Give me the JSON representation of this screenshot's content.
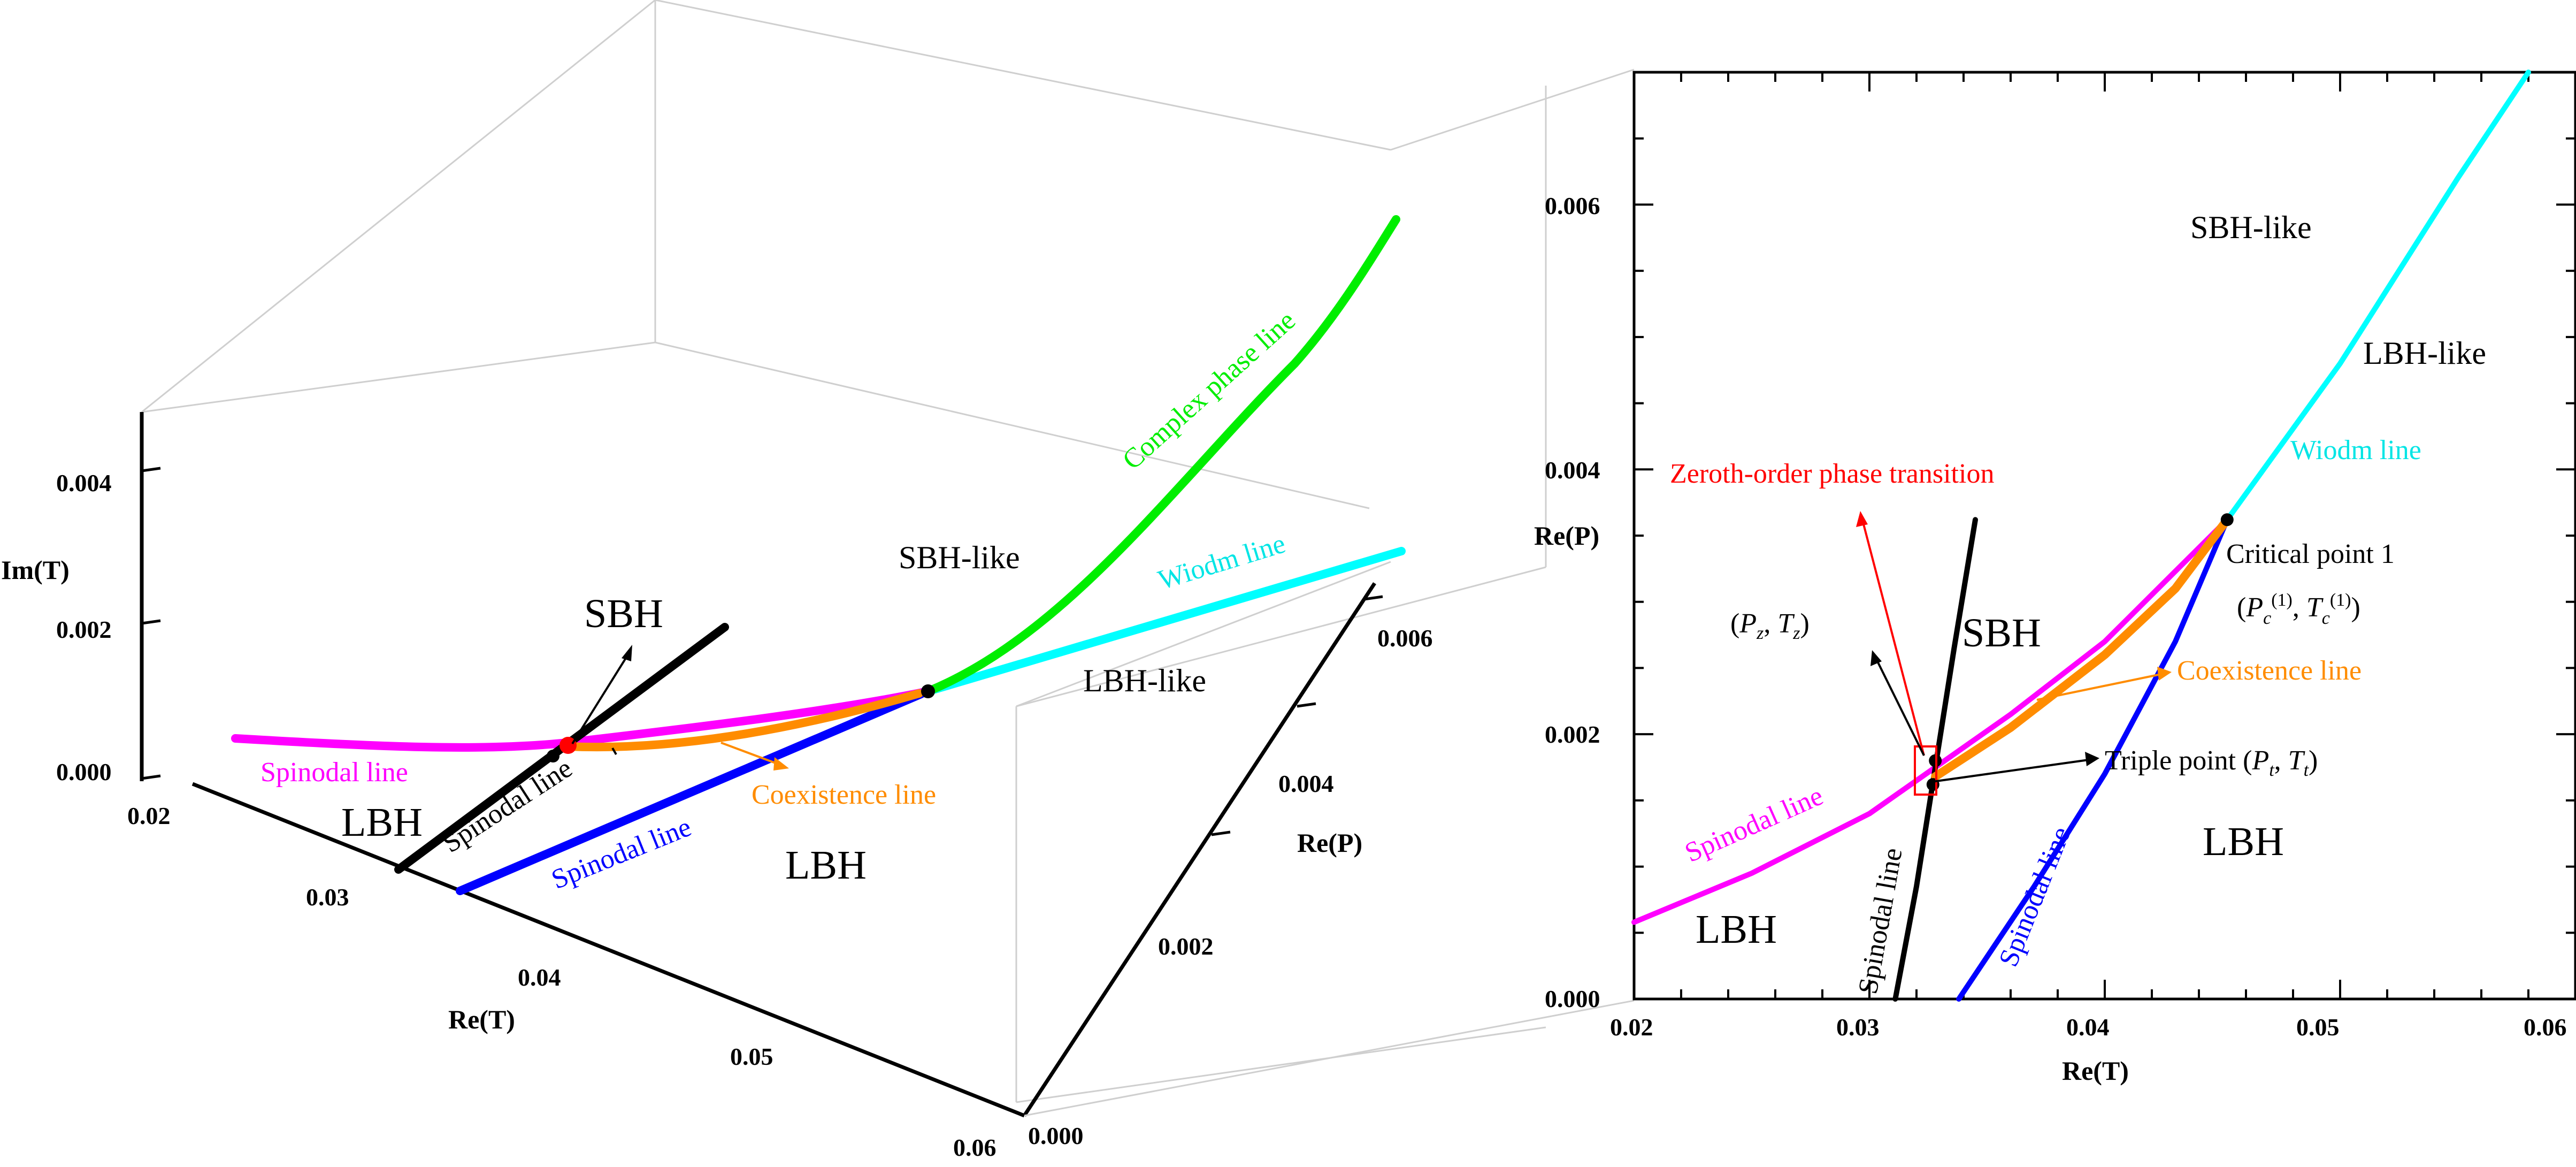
{
  "chart_data": [
    {
      "type": "line",
      "panel": "3d",
      "axes": {
        "x": {
          "label": "Re(T)",
          "ticks": [
            "0.02",
            "0.03",
            "0.04",
            "0.05",
            "0.06"
          ],
          "range": [
            0.02,
            0.06
          ]
        },
        "y": {
          "label": "Re(P)",
          "ticks": [
            "0.000",
            "0.002",
            "0.004",
            "0.006"
          ],
          "range": [
            0.0,
            0.007
          ]
        },
        "z": {
          "label": "Im(T)",
          "ticks": [
            "0.000",
            "0.002",
            "0.004"
          ],
          "range": [
            0.0,
            0.005
          ]
        }
      },
      "series": [
        {
          "name": "Spinodal line",
          "color": "#ff00ff",
          "x": [
            0.02,
            0.025,
            0.03,
            0.0328,
            0.036,
            0.04,
            0.0452
          ],
          "y": [
            0.00058,
            0.00095,
            0.0014,
            0.00175,
            0.00215,
            0.0027,
            0.00362
          ],
          "z": [
            0,
            0,
            0,
            0,
            0,
            0,
            0
          ]
        },
        {
          "name": "Spinodal line",
          "color": "#000000",
          "x": [
            0.0311,
            0.032,
            0.0328,
            0.0336,
            0.0345
          ],
          "y": [
            0.0,
            0.00085,
            0.00175,
            0.00265,
            0.00362
          ],
          "z": [
            0,
            0,
            0,
            0,
            0
          ]
        },
        {
          "name": "Spinodal line",
          "color": "#0000ff",
          "x": [
            0.0338,
            0.037,
            0.04,
            0.043,
            0.0452
          ],
          "y": [
            0.0,
            0.00085,
            0.0017,
            0.0027,
            0.00362
          ],
          "z": [
            0,
            0,
            0,
            0,
            0
          ]
        },
        {
          "name": "Coexistence line",
          "color": "#ff8c00",
          "x": [
            0.0328,
            0.036,
            0.04,
            0.043,
            0.0452
          ],
          "y": [
            0.00168,
            0.00205,
            0.0026,
            0.0031,
            0.00362
          ],
          "z": [
            0,
            0,
            0,
            0,
            0
          ]
        },
        {
          "name": "Wiodm line",
          "color": "#00ffff",
          "x": [
            0.0452,
            0.05,
            0.055,
            0.058
          ],
          "y": [
            0.00362,
            0.0048,
            0.0062,
            0.007
          ],
          "z": [
            0,
            0,
            0,
            0
          ]
        },
        {
          "name": "Complex phase line",
          "color": "#00ee00",
          "x": [
            0.0452,
            0.05,
            0.055,
            0.06
          ],
          "y": [
            0.00362,
            0.0045,
            0.0056,
            0.0068
          ],
          "z": [
            0.0,
            0.001,
            0.0025,
            0.0042
          ]
        }
      ],
      "points": [
        {
          "x": 0.0452,
          "y": 0.00362,
          "z": 0.0,
          "color": "#000000"
        },
        {
          "x": 0.0328,
          "y": 0.00168,
          "z": 0.0,
          "color": "#ff0000"
        },
        {
          "x": 0.0326,
          "y": 0.0016,
          "z": 0.0,
          "color": "#000000"
        }
      ],
      "labels": {
        "sbh": "SBH",
        "lbh_left": "LBH",
        "lbh_right": "LBH",
        "sbh_like": "SBH-like",
        "lbh_like": "LBH-like",
        "complex_phase_line": "Complex phase line",
        "wiodm_line": "Wiodm line",
        "spinodal_pink": "Spinodal line",
        "spinodal_black": "Spinodal line",
        "spinodal_blue": "Spinodal line",
        "coexistence": "Coexistence line"
      }
    },
    {
      "type": "line",
      "panel": "2d",
      "axes": {
        "x": {
          "label": "Re(T)",
          "ticks": [
            "0.02",
            "0.03",
            "0.04",
            "0.05",
            "0.06"
          ],
          "range": [
            0.02,
            0.06
          ]
        },
        "y": {
          "label": "Re(P)",
          "ticks": [
            "0.000",
            "0.002",
            "0.004",
            "0.006"
          ],
          "range": [
            0.0,
            0.007
          ]
        }
      },
      "series": [
        {
          "name": "Spinodal line",
          "color": "#ff00ff",
          "x": [
            0.02,
            0.025,
            0.03,
            0.0328,
            0.036,
            0.04,
            0.0452
          ],
          "y": [
            0.00058,
            0.00095,
            0.0014,
            0.00175,
            0.00215,
            0.0027,
            0.00362
          ]
        },
        {
          "name": "Spinodal line",
          "color": "#000000",
          "x": [
            0.0311,
            0.032,
            0.0328,
            0.0336,
            0.0345
          ],
          "y": [
            0.0,
            0.00085,
            0.00175,
            0.00265,
            0.00362
          ]
        },
        {
          "name": "Spinodal line",
          "color": "#0000ff",
          "x": [
            0.0338,
            0.037,
            0.04,
            0.043,
            0.0452
          ],
          "y": [
            0.0,
            0.00085,
            0.0017,
            0.0027,
            0.00362
          ]
        },
        {
          "name": "Coexistence line",
          "color": "#ff8c00",
          "x": [
            0.0328,
            0.036,
            0.04,
            0.043,
            0.0452
          ],
          "y": [
            0.00168,
            0.00205,
            0.0026,
            0.0031,
            0.00362
          ]
        },
        {
          "name": "Wiodm line",
          "color": "#00ffff",
          "x": [
            0.0452,
            0.05,
            0.055,
            0.058
          ],
          "y": [
            0.00362,
            0.0048,
            0.0062,
            0.007
          ]
        }
      ],
      "points": [
        {
          "name": "Critical point 1",
          "x": 0.0452,
          "y": 0.00362,
          "color": "#000000"
        },
        {
          "name": "(P_z, T_z)",
          "x": 0.0328,
          "y": 0.0018,
          "color": "#000000"
        },
        {
          "name": "Triple point",
          "x": 0.0327,
          "y": 0.00162,
          "color": "#000000"
        }
      ],
      "labels": {
        "sbh": "SBH",
        "lbh_right": "LBH",
        "lbh_left": "LBH",
        "sbh_like": "SBH-like",
        "lbh_like": "LBH-like",
        "wiodm_line": "Wiodm line",
        "zeroth_order": "Zeroth-order phase transition",
        "critical_point": "Critical point 1",
        "pz_tz_P": "P",
        "pz_tz_Psub": "z",
        "pz_tz_T": "T",
        "pz_tz_Tsub": "z",
        "pc_P": "P",
        "pc_Psub": "c",
        "pc_Psup": "(1)",
        "pc_T": "T",
        "pc_Tsub": "c",
        "pc_Tsup": "(1)",
        "coexistence": "Coexistence line",
        "triple_point": "Triple point",
        "triple_P": "P",
        "triple_Psub": "t",
        "triple_T": "T",
        "triple_Tsub": "t",
        "spinodal_pink": "Spinodal line",
        "spinodal_black": "Spinodal line",
        "spinodal_blue": "Spinodal line"
      }
    }
  ]
}
